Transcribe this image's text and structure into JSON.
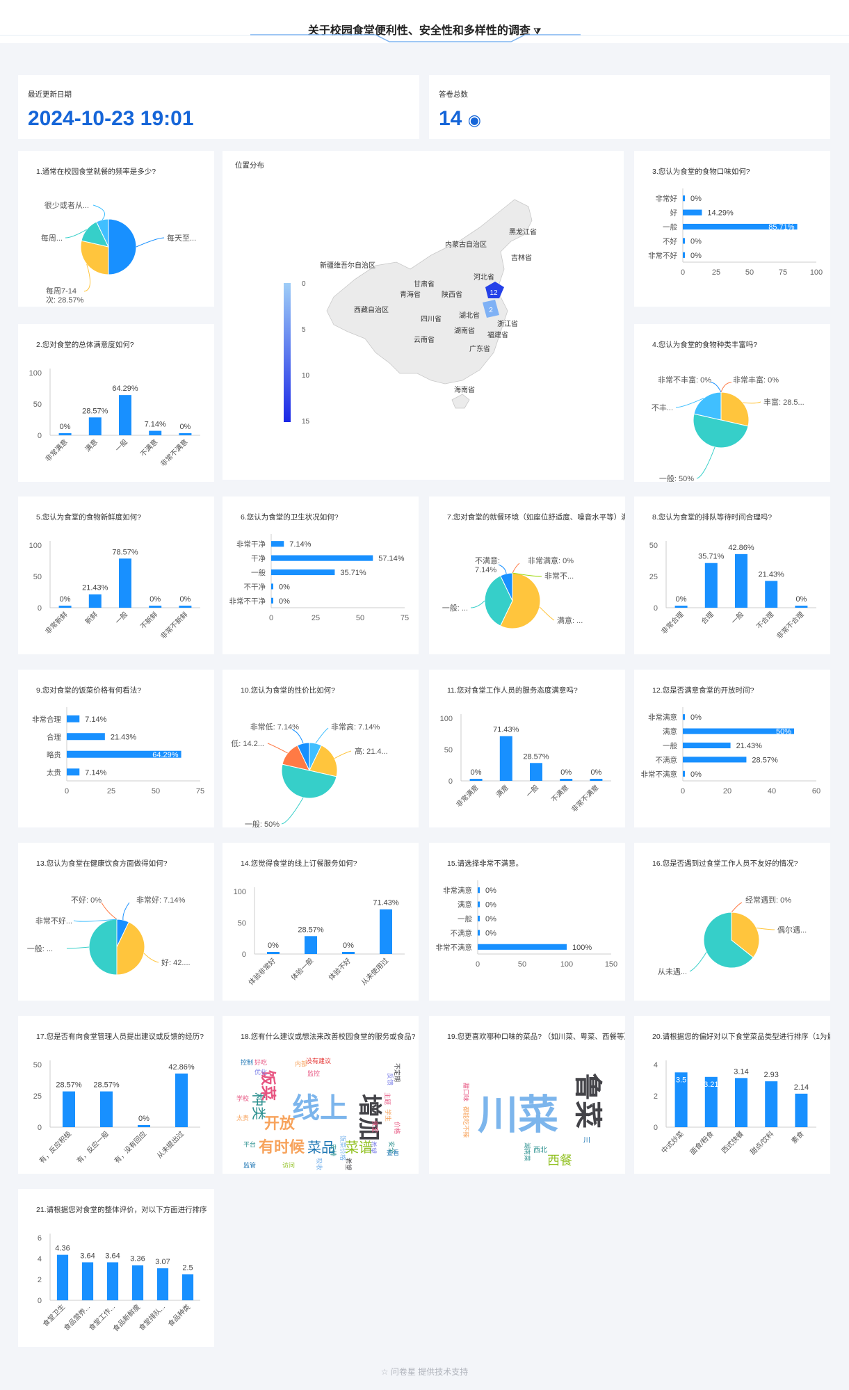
{
  "page": {
    "title": "关于校园食堂便利性、安全性和多样性的调查",
    "footer": "问卷星 提供技术支持"
  },
  "stats": {
    "updated_label": "最近更新日期",
    "updated_value": "2024-10-23 19:01",
    "count_label": "答卷总数",
    "count_value": "14"
  },
  "colors": {
    "accent": "#1890ff",
    "title": "#1565d8",
    "map_light": "#9fcdf7",
    "map_dark": "#1a27e6",
    "teal": "#36cfc9",
    "yellow": "#ffc53d",
    "orange": "#ff7a45",
    "lightblue": "#40bfff"
  },
  "map": {
    "title": "位置分布",
    "legend_ticks": [
      "0",
      "5",
      "10",
      "15"
    ],
    "provinces": [
      "黑龙江省",
      "吉林省",
      "内蒙古自治区",
      "新疆维吾尔自治区",
      "河北省",
      "甘肃省",
      "青海省",
      "陕西省",
      "西藏自治区",
      "四川省",
      "湖北省",
      "浙江省",
      "湖南省",
      "福建省",
      "云南省",
      "广东省",
      "海南省"
    ],
    "values": [
      {
        "name": "12",
        "region": "北京/天津"
      },
      {
        "name": "2",
        "region": "江苏/安徽"
      }
    ]
  },
  "chart_data": [
    {
      "id": "q1",
      "type": "pie",
      "title": "1.通常在校园食堂就餐的频率是多少?",
      "slices": [
        {
          "label": "每天至...",
          "value": 50
        },
        {
          "label": "每周7-14次: 28.57%",
          "value": 28.57
        },
        {
          "label": "每周...",
          "value": 14.29
        },
        {
          "label": "很少或者从...",
          "value": 7.14
        }
      ]
    },
    {
      "id": "q2",
      "type": "bar",
      "title": "2.您对食堂的总体满意度如何?",
      "categories": [
        "非常满意",
        "满意",
        "一般",
        "不满意",
        "非常不满意"
      ],
      "values": [
        0,
        28.57,
        64.29,
        7.14,
        0
      ],
      "labels": [
        "0%",
        "28.57%",
        "64.29%",
        "7.14%",
        "0%"
      ],
      "yticks": [
        "0",
        "50",
        "100"
      ],
      "ylim": [
        0,
        100
      ]
    },
    {
      "id": "q3",
      "type": "hbar",
      "title": "3.您认为食堂的食物口味如何?",
      "categories": [
        "非常好",
        "好",
        "一般",
        "不好",
        "非常不好"
      ],
      "values": [
        0,
        14.29,
        85.71,
        0,
        0
      ],
      "labels": [
        "0%",
        "14.29%",
        "85.71%",
        "0%",
        "0%"
      ],
      "xticks": [
        "0",
        "25",
        "50",
        "75",
        "100"
      ],
      "xlim": [
        0,
        100
      ]
    },
    {
      "id": "q4",
      "type": "pie",
      "title": "4.您认为食堂的食物种类丰富吗?",
      "slices": [
        {
          "label": "非常丰富: 0%",
          "value": 0
        },
        {
          "label": "丰富: 28.5...",
          "value": 28.57
        },
        {
          "label": "一般: 50%",
          "value": 50
        },
        {
          "label": "不丰...",
          "value": 21.43
        },
        {
          "label": "非常不丰富: 0%",
          "value": 0
        }
      ]
    },
    {
      "id": "q5",
      "type": "bar",
      "title": "5.您认为食堂的食物新鲜度如何?",
      "categories": [
        "非常新鲜",
        "新鲜",
        "一般",
        "不新鲜",
        "非常不新鲜"
      ],
      "values": [
        0,
        21.43,
        78.57,
        0,
        0
      ],
      "labels": [
        "0%",
        "21.43%",
        "78.57%",
        "0%",
        "0%"
      ],
      "yticks": [
        "0",
        "50",
        "100"
      ],
      "ylim": [
        0,
        100
      ]
    },
    {
      "id": "q6",
      "type": "hbar",
      "title": "6.您认为食堂的卫生状况如何?",
      "categories": [
        "非常干净",
        "干净",
        "一般",
        "不干净",
        "非常不干净"
      ],
      "values": [
        7.14,
        57.14,
        35.71,
        0,
        0
      ],
      "labels": [
        "7.14%",
        "57.14%",
        "35.71%",
        "0%",
        "0%"
      ],
      "xticks": [
        "0",
        "25",
        "50",
        "75"
      ],
      "xlim": [
        0,
        75
      ]
    },
    {
      "id": "q7",
      "type": "pie",
      "title": "7.您对食堂的就餐环境（如座位舒适度、噪音水平等）满意吗?",
      "slices": [
        {
          "label": "非常满意: 0%",
          "value": 0
        },
        {
          "label": "满意: ...",
          "value": 57.14
        },
        {
          "label": "一般: ...",
          "value": 35.71
        },
        {
          "label": "不满意: 7.14%",
          "value": 7.14
        },
        {
          "label": "非常不...",
          "value": 0
        }
      ]
    },
    {
      "id": "q8",
      "type": "bar",
      "title": "8.您认为食堂的排队等待时间合理吗?",
      "categories": [
        "非常合理",
        "合理",
        "一般",
        "不合理",
        "非常不合理"
      ],
      "values": [
        0,
        35.71,
        42.86,
        21.43,
        0
      ],
      "labels": [
        "0%",
        "35.71%",
        "42.86%",
        "21.43%",
        "0%"
      ],
      "yticks": [
        "0",
        "25",
        "50"
      ],
      "ylim": [
        0,
        50
      ]
    },
    {
      "id": "q9",
      "type": "hbar",
      "title": "9.您对食堂的饭菜价格有何看法?",
      "categories": [
        "非常合理",
        "合理",
        "略贵",
        "太贵"
      ],
      "values": [
        7.14,
        21.43,
        64.29,
        7.14
      ],
      "labels": [
        "7.14%",
        "21.43%",
        "64.29%",
        "7.14%"
      ],
      "xticks": [
        "0",
        "25",
        "50",
        "75"
      ],
      "xlim": [
        0,
        75
      ]
    },
    {
      "id": "q10",
      "type": "pie",
      "title": "10.您认为食堂的性价比如何?",
      "slices": [
        {
          "label": "非常高: 7.14%",
          "value": 7.14
        },
        {
          "label": "高: 21.4...",
          "value": 21.43
        },
        {
          "label": "一般: 50%",
          "value": 50
        },
        {
          "label": "低: 14.2...",
          "value": 14.29
        },
        {
          "label": "非常低: 7.14%",
          "value": 7.14
        }
      ]
    },
    {
      "id": "q11",
      "type": "bar",
      "title": "11.您对食堂工作人员的服务态度满意吗?",
      "categories": [
        "非常满意",
        "满意",
        "一般",
        "不满意",
        "非常不满意"
      ],
      "values": [
        0,
        71.43,
        28.57,
        0,
        0
      ],
      "labels": [
        "0%",
        "71.43%",
        "28.57%",
        "0%",
        "0%"
      ],
      "yticks": [
        "0",
        "50",
        "100"
      ],
      "ylim": [
        0,
        100
      ]
    },
    {
      "id": "q12",
      "type": "hbar",
      "title": "12.您是否满意食堂的开放时间?",
      "categories": [
        "非常满意",
        "满意",
        "一般",
        "不满意",
        "非常不满意"
      ],
      "values": [
        0,
        50,
        21.43,
        28.57,
        0
      ],
      "labels": [
        "0%",
        "50%",
        "21.43%",
        "28.57%",
        "0%"
      ],
      "xticks": [
        "0",
        "20",
        "40",
        "60"
      ],
      "xlim": [
        0,
        60
      ]
    },
    {
      "id": "q13",
      "type": "pie",
      "title": "13.您认为食堂在健康饮食方面做得如何?",
      "slices": [
        {
          "label": "非常好: 7.14%",
          "value": 7.14
        },
        {
          "label": "好: 42....",
          "value": 42.86
        },
        {
          "label": "一般: ...",
          "value": 50
        },
        {
          "label": "不好: 0%",
          "value": 0
        },
        {
          "label": "非常不好...",
          "value": 0
        }
      ]
    },
    {
      "id": "q14",
      "type": "bar",
      "title": "14.您觉得食堂的线上订餐服务如何?",
      "categories": [
        "体验非常好",
        "体验一般",
        "体验不好",
        "从未使用过"
      ],
      "values": [
        0,
        28.57,
        0,
        71.43
      ],
      "labels": [
        "0%",
        "28.57%",
        "0%",
        "71.43%"
      ],
      "yticks": [
        "0",
        "50",
        "100"
      ],
      "ylim": [
        0,
        100
      ]
    },
    {
      "id": "q15",
      "type": "hbar",
      "title": "15.请选择非常不满意。",
      "categories": [
        "非常满意",
        "满意",
        "一般",
        "不满意",
        "非常不满意"
      ],
      "values": [
        0,
        0,
        0,
        0,
        100
      ],
      "labels": [
        "0%",
        "0%",
        "0%",
        "0%",
        "100%"
      ],
      "xticks": [
        "0",
        "50",
        "100",
        "150"
      ],
      "xlim": [
        0,
        150
      ]
    },
    {
      "id": "q16",
      "type": "pie",
      "title": "16.您是否遇到过食堂工作人员不友好的情况?",
      "slices": [
        {
          "label": "经常遇到: 0%",
          "value": 0
        },
        {
          "label": "偶尔遇...",
          "value": 35.71
        },
        {
          "label": "从未遇...",
          "value": 64.29
        }
      ]
    },
    {
      "id": "q17",
      "type": "bar",
      "title": "17.您是否有向食堂管理人员提出建议或反馈的经历?",
      "categories": [
        "有，反应积极",
        "有，反应一般",
        "有，没有回应",
        "从未提出过"
      ],
      "values": [
        28.57,
        28.57,
        0,
        42.86
      ],
      "labels": [
        "28.57%",
        "28.57%",
        "0%",
        "42.86%"
      ],
      "yticks": [
        "0",
        "25",
        "50"
      ],
      "ylim": [
        0,
        50
      ]
    },
    {
      "id": "q18",
      "type": "wordcloud",
      "title": "18.您有什么建议或想法来改善校园食堂的服务或食品?",
      "words": [
        {
          "text": "线上",
          "c": "#7cb5ec"
        },
        {
          "text": "增加",
          "c": "#434348"
        },
        {
          "text": "开放",
          "c": "#f7a35c"
        },
        {
          "text": "种类",
          "c": "#2b908f"
        },
        {
          "text": "饭菜",
          "c": "#e75480"
        },
        {
          "text": "有时候",
          "c": "#f7a35c"
        },
        {
          "text": "菜品",
          "c": "#1f77b4"
        },
        {
          "text": "菜谱",
          "c": "#90c020"
        },
        {
          "text": "控制",
          "c": "#1f77b4"
        },
        {
          "text": "好吃",
          "c": "#e75480"
        },
        {
          "text": "优化",
          "c": "#8085e9"
        },
        {
          "text": "学校",
          "c": "#e75480"
        },
        {
          "text": "太贵",
          "c": "#f7a35c"
        },
        {
          "text": "平台",
          "c": "#2b908f"
        },
        {
          "text": "监管",
          "c": "#1f77b4"
        },
        {
          "text": "访问",
          "c": "#90c020"
        },
        {
          "text": "内部",
          "c": "#f7a35c"
        },
        {
          "text": "监控",
          "c": "#e75480"
        },
        {
          "text": "没有建议",
          "c": "#e4302f"
        },
        {
          "text": "不定期",
          "c": "#434348"
        },
        {
          "text": "反馈",
          "c": "#8085e9"
        },
        {
          "text": "主题",
          "c": "#e75480"
        },
        {
          "text": "学生",
          "c": "#f7a35c"
        },
        {
          "text": "价格",
          "c": "#e75480"
        },
        {
          "text": "食堂",
          "c": "#e75480"
        },
        {
          "text": "希望",
          "c": "#8085e9"
        },
        {
          "text": "安排",
          "c": "#2b908f"
        },
        {
          "text": "吸收",
          "c": "#7cb5ec"
        },
        {
          "text": "希望",
          "c": "#434348"
        },
        {
          "text": "查看",
          "c": "#1f77b4"
        },
        {
          "text": "安全",
          "c": "#2b908f"
        },
        {
          "text": "饭菜价格",
          "c": "#7cb5ec"
        }
      ]
    },
    {
      "id": "q19",
      "type": "wordcloud",
      "title": "19.您更喜欢哪种口味的菜品? （如川菜、粤菜、西餐等）",
      "words": [
        {
          "text": "川菜",
          "c": "#7cb5ec"
        },
        {
          "text": "鲁菜",
          "c": "#434348"
        },
        {
          "text": "西餐",
          "c": "#90c020"
        },
        {
          "text": "西北",
          "c": "#2b908f"
        },
        {
          "text": "川",
          "c": "#1f77b4"
        },
        {
          "text": "湖南菜",
          "c": "#2b908f"
        },
        {
          "text": "甜口味",
          "c": "#e75480"
        },
        {
          "text": "都能吃不辣",
          "c": "#f7a35c"
        }
      ]
    },
    {
      "id": "q20",
      "type": "bar",
      "title": "20.请根据您的偏好对以下食堂菜品类型进行排序（1为最高，6为最低）",
      "categories": [
        "中式炒菜",
        "面食/粉食",
        "西式快餐",
        "甜点/饮料",
        "素食"
      ],
      "values": [
        3.5,
        3.21,
        3.14,
        2.93,
        2.14
      ],
      "labels": [
        "3.5",
        "3.21",
        "3.14",
        "2.93",
        "2.14"
      ],
      "yticks": [
        "0",
        "2",
        "4"
      ],
      "ylim": [
        0,
        4
      ]
    },
    {
      "id": "q21",
      "type": "bar",
      "title": "21.请根据您对食堂的整体评价，对以下方面进行排序",
      "categories": [
        "食堂卫生",
        "食品营养...",
        "食堂工作...",
        "食品新鲜度",
        "食堂排队...",
        "食品种类"
      ],
      "values": [
        4.36,
        3.64,
        3.64,
        3.36,
        3.07,
        2.5
      ],
      "labels": [
        "4.36",
        "3.64",
        "3.64",
        "3.36",
        "3.07",
        "2.5"
      ],
      "yticks": [
        "0",
        "2",
        "4",
        "6"
      ],
      "ylim": [
        0,
        6
      ]
    }
  ]
}
